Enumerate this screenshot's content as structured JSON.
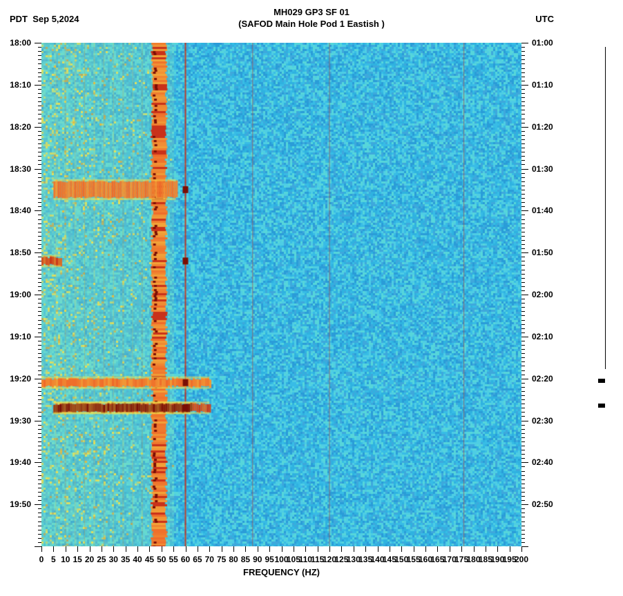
{
  "header": {
    "left_tz": "PDT",
    "date": "Sep 5,2024",
    "title_line1": "MH029 GP3 SF 01",
    "title_line2": "(SAFOD Main Hole Pod 1 Eastish )",
    "right_tz": "UTC"
  },
  "chart": {
    "type": "spectrogram",
    "x_label": "FREQUENCY (HZ)",
    "x_min": 0,
    "x_max": 200,
    "x_tick_step": 5,
    "x_ticks": [
      0,
      5,
      10,
      15,
      20,
      25,
      30,
      35,
      40,
      45,
      50,
      55,
      60,
      65,
      70,
      75,
      80,
      85,
      90,
      95,
      100,
      105,
      110,
      115,
      120,
      125,
      130,
      135,
      140,
      145,
      150,
      155,
      160,
      165,
      170,
      175,
      180,
      185,
      190,
      195,
      200
    ],
    "y_left_labels": [
      "18:00",
      "18:10",
      "18:20",
      "18:30",
      "18:40",
      "18:50",
      "19:00",
      "19:10",
      "19:20",
      "19:30",
      "19:40",
      "19:50"
    ],
    "y_right_labels": [
      "01:00",
      "01:10",
      "01:20",
      "01:30",
      "01:40",
      "01:50",
      "02:00",
      "02:10",
      "02:20",
      "02:30",
      "02:40",
      "02:50"
    ],
    "y_rows": 120,
    "y_major_every": 10,
    "background_noise_colors": [
      "#2fb2e0",
      "#38bce6",
      "#4ecde4",
      "#3ea8dc",
      "#2a9cd8",
      "#56d6da"
    ],
    "low_freq_band_color": "#8ee6b5",
    "hot_colors": [
      "#f6e34a",
      "#f5a623",
      "#ef6a2a",
      "#c9321a",
      "#7a0e05"
    ],
    "vertical_lines_hz": [
      60,
      88,
      120,
      176
    ],
    "vertical_line_color": "#c9321a",
    "guide_line_colors": [
      "#e6c44a",
      "#d99a2a"
    ],
    "guide_lines_hz": [
      6,
      10,
      14,
      18,
      22,
      26,
      30,
      34,
      38,
      42,
      46
    ],
    "primary_band_hz": [
      46,
      52
    ],
    "events": [
      {
        "row_from": 33,
        "row_to": 37,
        "hz_from": 5,
        "hz_to": 56,
        "intensity": "high"
      },
      {
        "row_from": 51,
        "row_to": 53,
        "hz_from": 0,
        "hz_to": 8,
        "intensity": "very-high"
      },
      {
        "row_from": 80,
        "row_to": 82,
        "hz_from": 0,
        "hz_to": 70,
        "intensity": "high"
      },
      {
        "row_from": 86,
        "row_to": 88,
        "hz_from": 5,
        "hz_to": 70,
        "intensity": "very-high"
      },
      {
        "row_from": 86,
        "row_to": 88,
        "hz_from": 5,
        "hz_to": 62,
        "intensity": "extreme"
      }
    ],
    "side_event_rows": [
      80,
      86
    ],
    "title_fontsize": 13,
    "label_fontsize": 12,
    "font_weight": "bold",
    "background_color": "#ffffff",
    "tick_color": "#000000"
  }
}
